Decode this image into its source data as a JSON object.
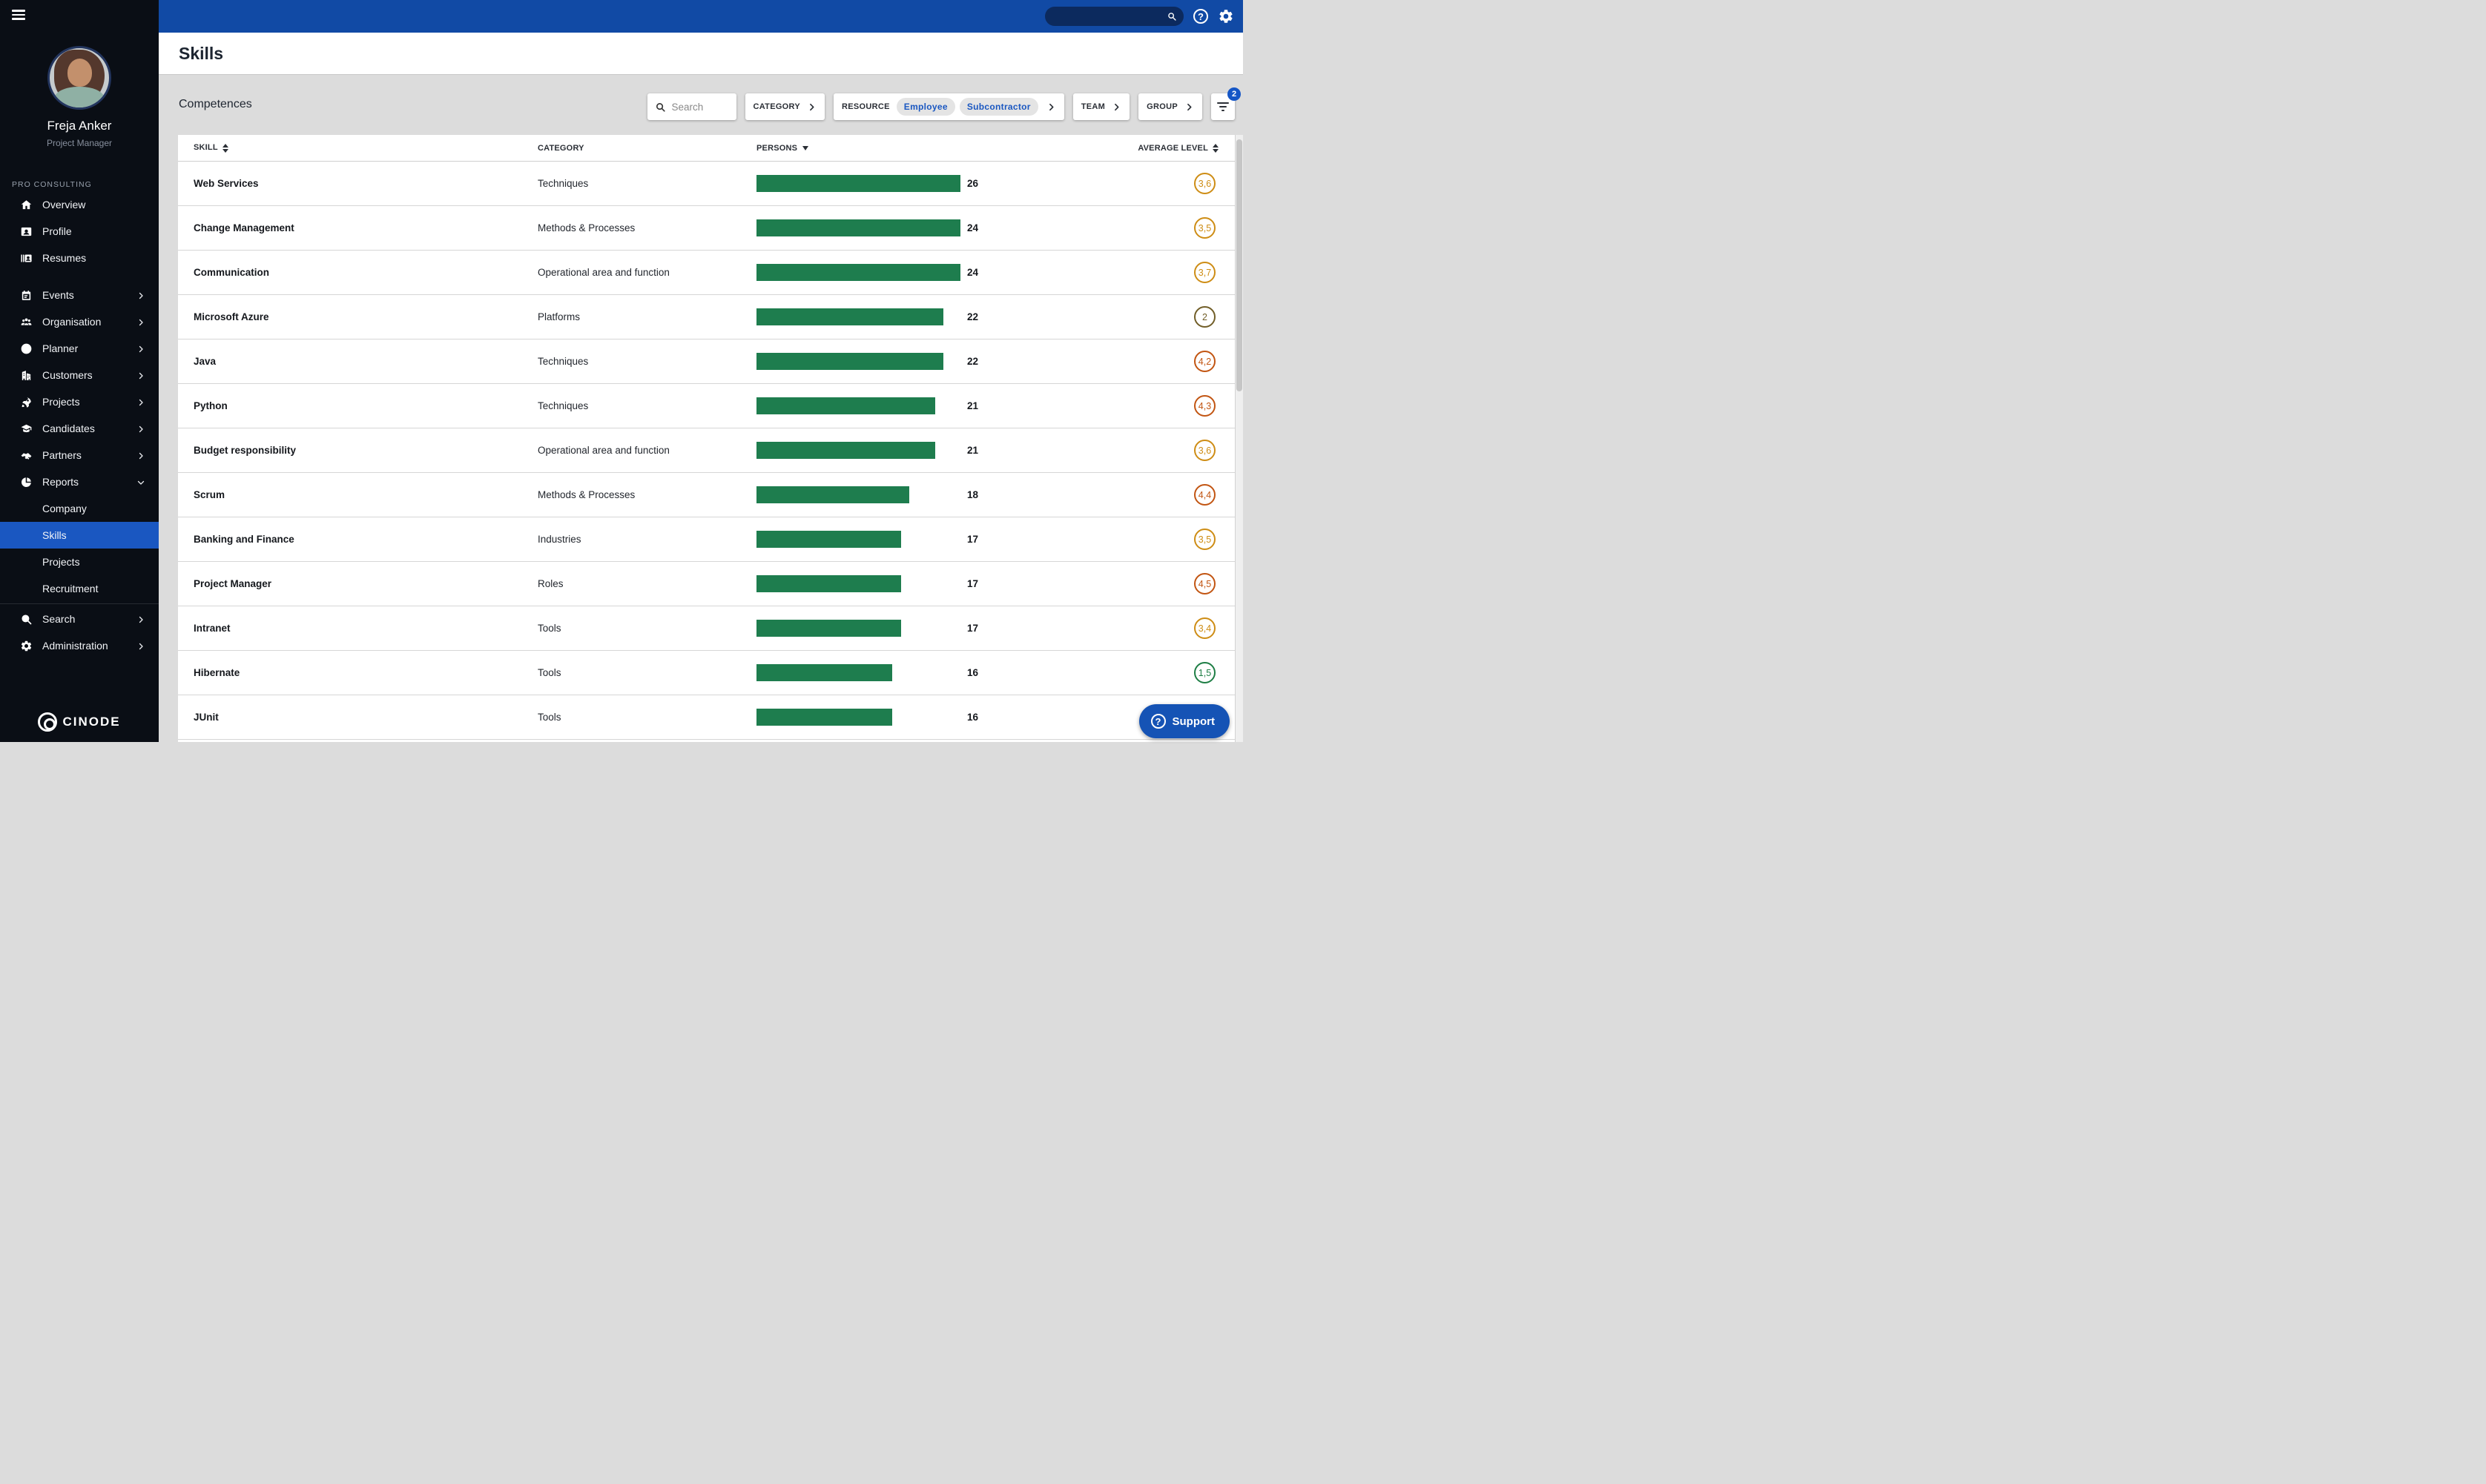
{
  "colors": {
    "topbar_blue": "#114AA5",
    "accent_blue": "#1A57C1",
    "sidebar_bg": "#0A0E15",
    "content_bg": "#DCDCDC",
    "bar_green": "#1E7D4E",
    "levels": {
      "gold": "#CE8D15",
      "rust": "#C25512",
      "olive": "#715E28",
      "green": "#1E7E45"
    }
  },
  "topbar": {
    "search_value": ""
  },
  "sidebar": {
    "company": "PRO CONSULTING",
    "user": {
      "name": "Freja Anker",
      "role": "Project Manager"
    },
    "items": [
      {
        "label": "Overview",
        "icon": "home"
      },
      {
        "label": "Profile",
        "icon": "profile-card"
      },
      {
        "label": "Resumes",
        "icon": "resumes"
      },
      {
        "label": "Events",
        "icon": "calendar",
        "chevron": "right",
        "gap_before": true
      },
      {
        "label": "Organisation",
        "icon": "people",
        "chevron": "right"
      },
      {
        "label": "Planner",
        "icon": "planner",
        "chevron": "right"
      },
      {
        "label": "Customers",
        "icon": "building",
        "chevron": "right"
      },
      {
        "label": "Projects",
        "icon": "rocket",
        "chevron": "right"
      },
      {
        "label": "Candidates",
        "icon": "grad-cap",
        "chevron": "right"
      },
      {
        "label": "Partners",
        "icon": "handshake",
        "chevron": "right"
      },
      {
        "label": "Reports",
        "icon": "pie-chart",
        "chevron": "down",
        "expanded": true
      },
      {
        "label": "Company",
        "child": true
      },
      {
        "label": "Skills",
        "child": true,
        "active": true
      },
      {
        "label": "Projects",
        "child": true
      },
      {
        "label": "Recruitment",
        "child": true
      },
      {
        "label": "Search",
        "icon": "search",
        "chevron": "right",
        "divider_before": true
      },
      {
        "label": "Administration",
        "icon": "gear",
        "chevron": "right"
      }
    ],
    "logo": "CINODE"
  },
  "header": {
    "title": "Skills"
  },
  "filters": {
    "section_title": "Competences",
    "search_placeholder": "Search",
    "category_label": "CATEGORY",
    "resource_label": "RESOURCE",
    "resource_chips": [
      "Employee",
      "Subcontractor"
    ],
    "team_label": "TEAM",
    "group_label": "GROUP",
    "active_filter_count": "2"
  },
  "table": {
    "bar_scale_max": 24,
    "columns": [
      {
        "label": "SKILL",
        "sort": "both"
      },
      {
        "label": "CATEGORY",
        "sort": "none"
      },
      {
        "label": "PERSONS",
        "sort": "down"
      },
      {
        "label": "AVERAGE LEVEL",
        "sort": "both"
      }
    ],
    "rows": [
      {
        "skill": "Web Services",
        "category": "Techniques",
        "persons": 26,
        "level": "3,6",
        "tone": "gold"
      },
      {
        "skill": "Change Management",
        "category": "Methods & Processes",
        "persons": 24,
        "level": "3,5",
        "tone": "gold"
      },
      {
        "skill": "Communication",
        "category": "Operational area and function",
        "persons": 24,
        "level": "3,7",
        "tone": "gold"
      },
      {
        "skill": "Microsoft Azure",
        "category": "Platforms",
        "persons": 22,
        "level": "2",
        "tone": "olive"
      },
      {
        "skill": "Java",
        "category": "Techniques",
        "persons": 22,
        "level": "4,2",
        "tone": "rust"
      },
      {
        "skill": "Python",
        "category": "Techniques",
        "persons": 21,
        "level": "4,3",
        "tone": "rust"
      },
      {
        "skill": "Budget responsibility",
        "category": "Operational area and function",
        "persons": 21,
        "level": "3,6",
        "tone": "gold"
      },
      {
        "skill": "Scrum",
        "category": "Methods & Processes",
        "persons": 18,
        "level": "4,4",
        "tone": "rust"
      },
      {
        "skill": "Banking and Finance",
        "category": "Industries",
        "persons": 17,
        "level": "3,5",
        "tone": "gold"
      },
      {
        "skill": "Project Manager",
        "category": "Roles",
        "persons": 17,
        "level": "4,5",
        "tone": "rust"
      },
      {
        "skill": "Intranet",
        "category": "Tools",
        "persons": 17,
        "level": "3,4",
        "tone": "gold"
      },
      {
        "skill": "Hibernate",
        "category": "Tools",
        "persons": 16,
        "level": "1,5",
        "tone": "green"
      },
      {
        "skill": "JUnit",
        "category": "Tools",
        "persons": 16,
        "level": null,
        "tone": null
      }
    ]
  },
  "support": {
    "label": "Support"
  }
}
